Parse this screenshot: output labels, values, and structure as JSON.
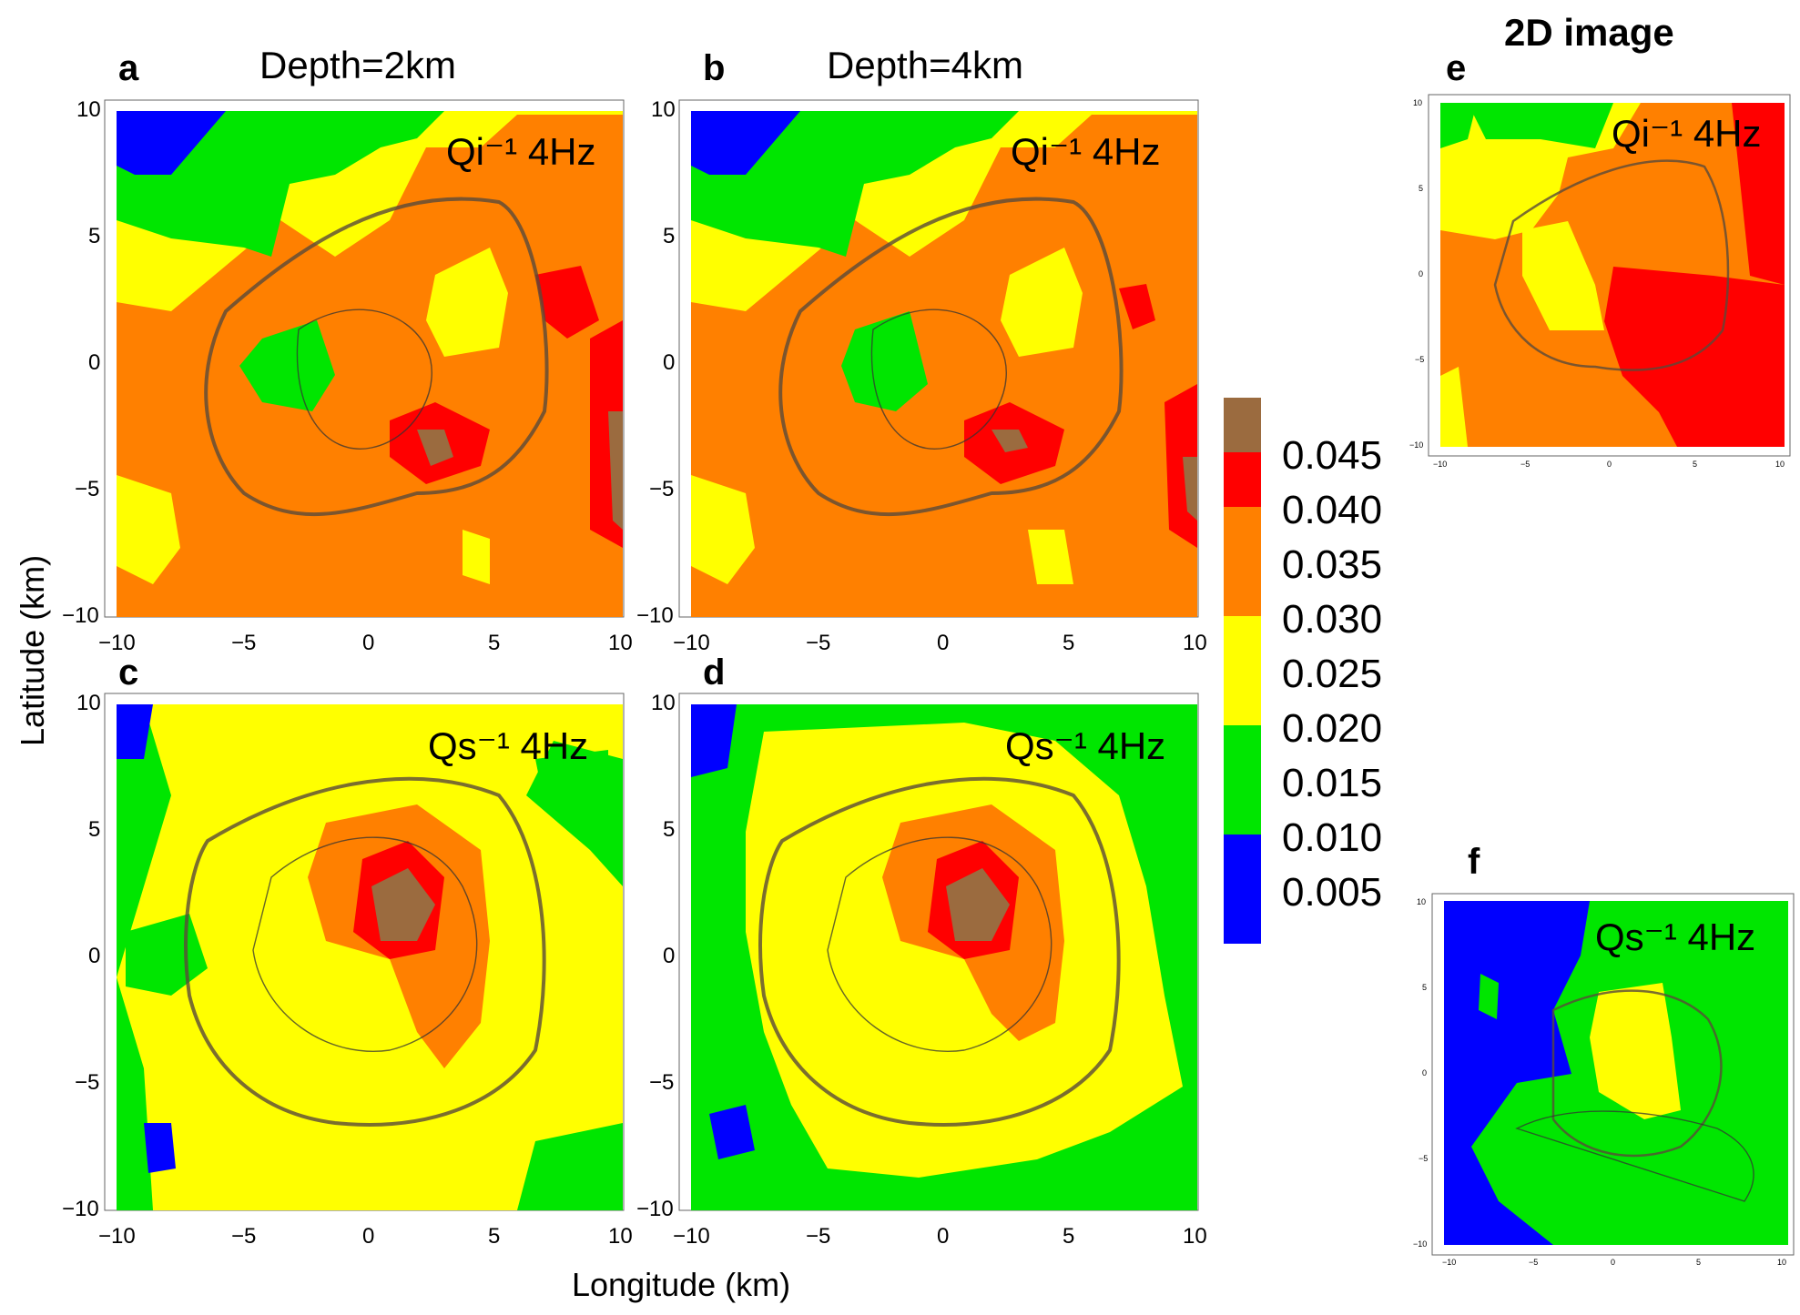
{
  "figure": {
    "title_2d": "2D image",
    "x_axis_label": "Longitude (km)",
    "y_axis_label": "Latitude (km)"
  },
  "colorbar": {
    "levels": [
      "0.045",
      "0.040",
      "0.035",
      "0.030",
      "0.025",
      "0.020",
      "0.015",
      "0.010",
      "0.005"
    ],
    "colors": {
      "brown": "#9b6b3f",
      "red": "#ff0000",
      "orange": "#ff8000",
      "yellow": "#ffff00",
      "green": "#00e600",
      "blue": "#0000ff"
    }
  },
  "chart_data": [
    {
      "type": "heatmap",
      "panel": "a",
      "title": "Depth=2km",
      "label": "Qi⁻¹ 4Hz",
      "xlim": [
        -10,
        10
      ],
      "ylim": [
        -10,
        10
      ],
      "xticks": [
        "−10",
        "−5",
        "0",
        "5",
        "10"
      ],
      "yticks": [
        "10",
        "5",
        "0",
        "−5",
        "−10"
      ]
    },
    {
      "type": "heatmap",
      "panel": "b",
      "title": "Depth=4km",
      "label": "Qi⁻¹ 4Hz",
      "xlim": [
        -10,
        10
      ],
      "ylim": [
        -10,
        10
      ],
      "xticks": [
        "−10",
        "−5",
        "0",
        "5",
        "10"
      ],
      "yticks": [
        "10",
        "5",
        "0",
        "−5",
        "−10"
      ]
    },
    {
      "type": "heatmap",
      "panel": "c",
      "title": "",
      "label": "Qs⁻¹ 4Hz",
      "xlim": [
        -10,
        10
      ],
      "ylim": [
        -10,
        10
      ],
      "xticks": [
        "−10",
        "−5",
        "0",
        "5",
        "10"
      ],
      "yticks": [
        "10",
        "5",
        "0",
        "−5",
        "−10"
      ]
    },
    {
      "type": "heatmap",
      "panel": "d",
      "title": "",
      "label": "Qs⁻¹ 4Hz",
      "xlim": [
        -10,
        10
      ],
      "ylim": [
        -10,
        10
      ],
      "xticks": [
        "−10",
        "−5",
        "0",
        "5",
        "10"
      ],
      "yticks": [
        "10",
        "5",
        "0",
        "−5",
        "−10"
      ]
    },
    {
      "type": "heatmap",
      "panel": "e",
      "title": "2D image",
      "label": "Qi⁻¹ 4Hz",
      "xlim": [
        -10,
        10
      ],
      "ylim": [
        -10,
        10
      ],
      "xticks": [
        "−10",
        "−5",
        "0",
        "5",
        "10"
      ],
      "yticks": [
        "10",
        "5",
        "0",
        "−5",
        "−10"
      ]
    },
    {
      "type": "heatmap",
      "panel": "f",
      "title": "",
      "label": "Qs⁻¹ 4Hz",
      "xlim": [
        -10,
        10
      ],
      "ylim": [
        -10,
        10
      ],
      "xticks": [
        "−10",
        "−5",
        "0",
        "5",
        "10"
      ],
      "yticks": [
        "10",
        "5",
        "0",
        "−5",
        "−10"
      ]
    }
  ]
}
